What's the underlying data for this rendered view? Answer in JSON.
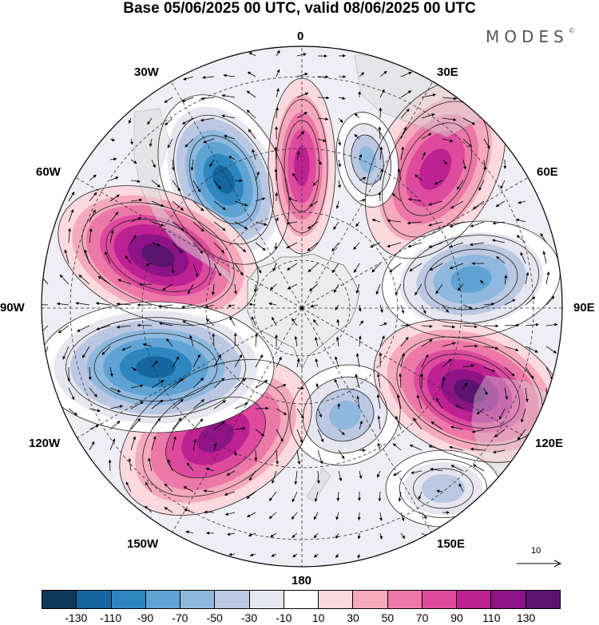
{
  "title": "Base 05/06/2025 00 UTC, valid 08/06/2025 00 UTC",
  "brand": "MODES",
  "brand_mark": "©",
  "longitude_labels": {
    "lon_0": "0",
    "lon_30e": "30E",
    "lon_60e": "60E",
    "lon_90e": "90E",
    "lon_120e": "120E",
    "lon_150e": "150E",
    "lon_180": "180",
    "lon_150w": "150W",
    "lon_120w": "120W",
    "lon_90w": "90W",
    "lon_60w": "60W",
    "lon_30w": "30W"
  },
  "vector_legend": {
    "label": "10",
    "icon": "arrow-right-icon"
  },
  "colorbar": {
    "colors": [
      "#0d3a5c",
      "#1566a0",
      "#2e86c1",
      "#5ea3d3",
      "#8fb8de",
      "#bcc8e2",
      "#e6e6f0",
      "#ffffff",
      "#fbd9de",
      "#f4a9bd",
      "#ec78a7",
      "#de4a9e",
      "#bd2192",
      "#8e1387",
      "#5a136f"
    ],
    "tick_labels": [
      "-130",
      "-110",
      "-90",
      "-70",
      "-50",
      "-30",
      "-10",
      "10",
      "30",
      "50",
      "70",
      "90",
      "110",
      "130"
    ]
  },
  "map": {
    "projection": "south polar stereographic",
    "gridlines": "dashed",
    "land_color": "#d9d9d9",
    "anomaly_centers": [
      {
        "sign": "negative",
        "value": -130
      },
      {
        "sign": "positive",
        "value": 90
      },
      {
        "sign": "positive",
        "value": 90
      },
      {
        "sign": "negative",
        "value": -90
      },
      {
        "sign": "positive",
        "value": 130
      },
      {
        "sign": "negative",
        "value": -70
      },
      {
        "sign": "negative",
        "value": -70
      },
      {
        "sign": "positive",
        "value": 110
      },
      {
        "sign": "negative",
        "value": -130
      },
      {
        "sign": "positive",
        "value": 130
      },
      {
        "sign": "negative",
        "value": -50
      }
    ]
  }
}
